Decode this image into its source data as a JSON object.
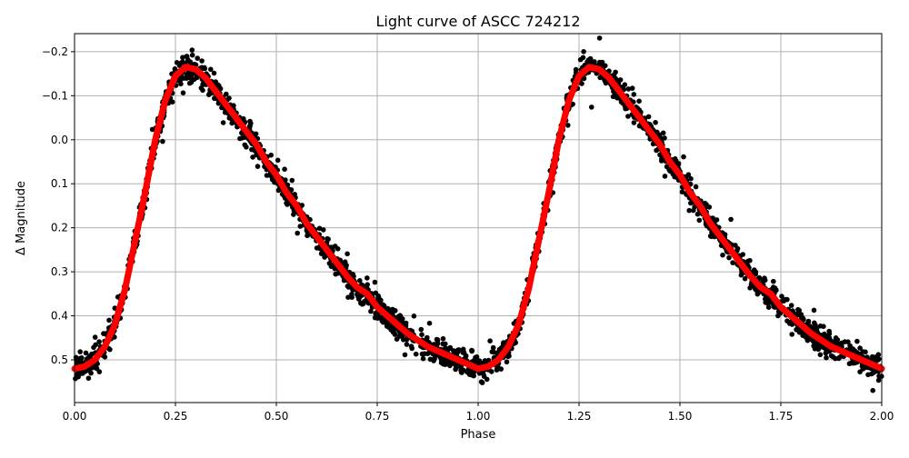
{
  "chart_data": {
    "type": "scatter",
    "title": "Light curve of ASCC 724212",
    "xlabel": "Phase",
    "ylabel": "Δ Magnitude",
    "xlim": [
      0,
      2
    ],
    "ylim": [
      0.597,
      -0.241
    ],
    "y_inverted": true,
    "grid": true,
    "xticks": [
      "0.00",
      "0.25",
      "0.50",
      "0.75",
      "1.00",
      "1.25",
      "1.50",
      "1.75",
      "2.00"
    ],
    "xtick_values": [
      0,
      0.25,
      0.5,
      0.75,
      1,
      1.25,
      1.5,
      1.75,
      2
    ],
    "yticks": [
      "−0.2",
      "−0.1",
      "0.0",
      "0.1",
      "0.2",
      "0.3",
      "0.4",
      "0.5"
    ],
    "ytick_values": [
      -0.2,
      -0.1,
      0,
      0.1,
      0.2,
      0.3,
      0.4,
      0.5
    ],
    "colors": {
      "points": "#000000",
      "fit": "#ff0000",
      "grid": "#b0b0b0"
    },
    "series": [
      {
        "kind": "fit-line",
        "color": "#ff0000",
        "x": [
          0,
          0.025,
          0.05,
          0.075,
          0.1,
          0.125,
          0.15,
          0.175,
          0.2,
          0.225,
          0.25,
          0.275,
          0.3,
          0.325,
          0.35,
          0.375,
          0.4,
          0.425,
          0.45,
          0.475,
          0.5,
          0.525,
          0.55,
          0.575,
          0.6,
          0.625,
          0.65,
          0.675,
          0.7,
          0.725,
          0.75,
          0.775,
          0.8,
          0.825,
          0.85,
          0.875,
          0.9,
          0.925,
          0.95,
          0.975,
          1.0,
          1.025,
          1.05,
          1.075,
          1.1,
          1.125,
          1.15,
          1.175,
          1.2,
          1.225,
          1.25,
          1.275,
          1.3,
          1.325,
          1.35,
          1.375,
          1.4,
          1.425,
          1.45,
          1.475,
          1.5,
          1.525,
          1.55,
          1.575,
          1.6,
          1.625,
          1.65,
          1.675,
          1.7,
          1.725,
          1.75,
          1.775,
          1.8,
          1.825,
          1.85,
          1.875,
          1.9,
          1.925,
          1.95,
          1.975,
          2.0
        ],
        "y": [
          0.52,
          0.515,
          0.5,
          0.47,
          0.42,
          0.34,
          0.23,
          0.12,
          0.0,
          -0.09,
          -0.145,
          -0.165,
          -0.16,
          -0.14,
          -0.11,
          -0.08,
          -0.05,
          -0.02,
          0.01,
          0.05,
          0.08,
          0.12,
          0.15,
          0.19,
          0.22,
          0.25,
          0.28,
          0.31,
          0.335,
          0.35,
          0.38,
          0.4,
          0.42,
          0.44,
          0.455,
          0.47,
          0.48,
          0.49,
          0.5,
          0.51,
          0.52,
          0.515,
          0.5,
          0.47,
          0.42,
          0.34,
          0.23,
          0.12,
          0.0,
          -0.09,
          -0.145,
          -0.165,
          -0.16,
          -0.14,
          -0.11,
          -0.08,
          -0.05,
          -0.02,
          0.01,
          0.05,
          0.08,
          0.12,
          0.15,
          0.19,
          0.22,
          0.25,
          0.28,
          0.31,
          0.335,
          0.35,
          0.38,
          0.4,
          0.42,
          0.44,
          0.455,
          0.47,
          0.48,
          0.49,
          0.5,
          0.51,
          0.52
        ]
      },
      {
        "kind": "observations",
        "color": "#000000",
        "scatter_around_fit": 0.025
      }
    ]
  }
}
